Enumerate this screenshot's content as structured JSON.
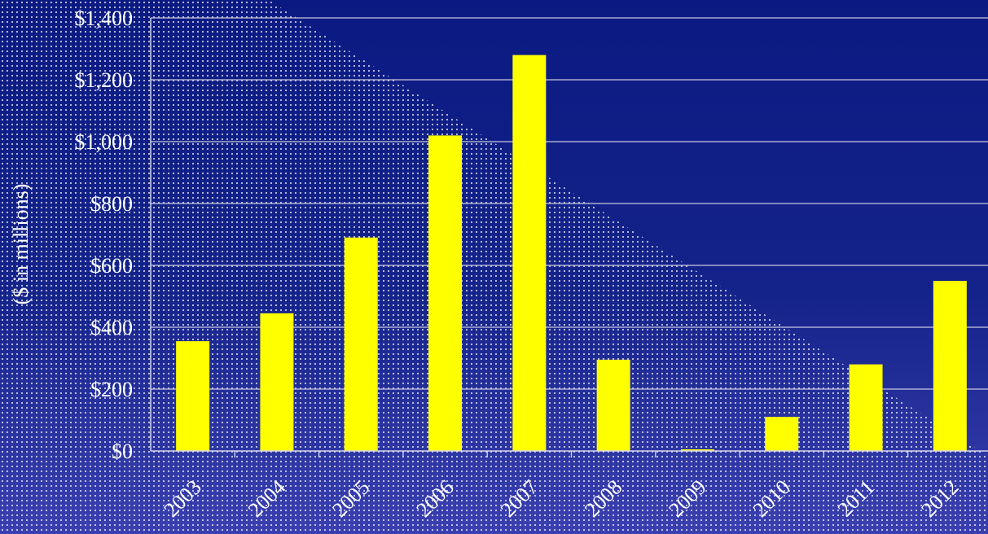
{
  "chart_data": {
    "type": "bar",
    "title": "",
    "xlabel": "",
    "ylabel": "($ in millions)",
    "categories": [
      "2003",
      "2004",
      "2005",
      "2006",
      "2007",
      "2008",
      "2009",
      "2010",
      "2011",
      "2012"
    ],
    "values": [
      355,
      445,
      690,
      1020,
      1280,
      295,
      5,
      110,
      280,
      550
    ],
    "ylim": [
      0,
      1400
    ],
    "yticks": [
      0,
      200,
      400,
      600,
      800,
      1000,
      1200,
      1400
    ],
    "ytick_labels": [
      "$0",
      "$200",
      "$400",
      "$600",
      "$800",
      "$1,000",
      "$1,200",
      "$1,400"
    ],
    "grid": true,
    "legend": "none",
    "bar_color": "#ffff00",
    "background_color": "#0b1a82",
    "grid_color": "#c8c8e0"
  }
}
